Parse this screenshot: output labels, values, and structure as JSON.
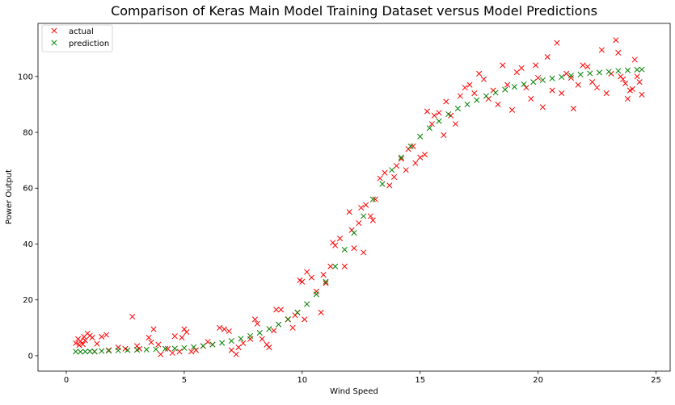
{
  "chart_data": {
    "type": "scatter",
    "title": "Comparison of Keras Main Model Training Dataset versus Model Predictions",
    "xlabel": "Wind Speed",
    "ylabel": "Power Output",
    "xlim": [
      -1.2,
      25.6
    ],
    "ylim": [
      -5.5,
      119
    ],
    "xticks": [
      0,
      5,
      10,
      15,
      20,
      25
    ],
    "yticks": [
      0,
      20,
      40,
      60,
      80,
      100
    ],
    "grid": false,
    "legend_position": "top-left",
    "marker": "x",
    "series": [
      {
        "name": "actual",
        "color": "#ff0000",
        "points": [
          [
            0.4,
            4.5
          ],
          [
            0.5,
            6.0
          ],
          [
            0.55,
            3.8
          ],
          [
            0.6,
            5.2
          ],
          [
            0.7,
            4.1
          ],
          [
            0.75,
            6.8
          ],
          [
            0.8,
            5.5
          ],
          [
            0.9,
            8.0
          ],
          [
            1.0,
            7.2
          ],
          [
            1.1,
            6.5
          ],
          [
            1.2,
            1.5
          ],
          [
            1.3,
            4.3
          ],
          [
            1.5,
            6.8
          ],
          [
            1.7,
            7.5
          ],
          [
            1.8,
            2.0
          ],
          [
            2.2,
            3.0
          ],
          [
            2.5,
            2.5
          ],
          [
            2.8,
            14.0
          ],
          [
            3.0,
            3.5
          ],
          [
            3.1,
            2.5
          ],
          [
            3.5,
            6.5
          ],
          [
            3.6,
            4.8
          ],
          [
            3.7,
            9.5
          ],
          [
            3.9,
            4.0
          ],
          [
            4.0,
            0.5
          ],
          [
            4.3,
            2.5
          ],
          [
            4.5,
            1.0
          ],
          [
            4.6,
            7.0
          ],
          [
            4.8,
            1.5
          ],
          [
            4.9,
            6.5
          ],
          [
            5.0,
            9.5
          ],
          [
            5.1,
            8.5
          ],
          [
            5.3,
            1.5
          ],
          [
            5.5,
            2.0
          ],
          [
            5.8,
            3.5
          ],
          [
            6.0,
            5.0
          ],
          [
            6.2,
            4.0
          ],
          [
            6.5,
            10.0
          ],
          [
            6.7,
            9.5
          ],
          [
            6.9,
            8.8
          ],
          [
            7.0,
            2.0
          ],
          [
            7.2,
            0.5
          ],
          [
            7.3,
            3.0
          ],
          [
            7.5,
            4.5
          ],
          [
            7.8,
            6.0
          ],
          [
            8.0,
            13.0
          ],
          [
            8.1,
            11.5
          ],
          [
            8.3,
            6.0
          ],
          [
            8.5,
            4.0
          ],
          [
            8.6,
            3.0
          ],
          [
            8.8,
            9.0
          ],
          [
            8.9,
            16.5
          ],
          [
            9.1,
            16.5
          ],
          [
            9.4,
            13.0
          ],
          [
            9.6,
            10.0
          ],
          [
            9.7,
            14.5
          ],
          [
            9.8,
            15.5
          ],
          [
            9.9,
            27.0
          ],
          [
            10.0,
            26.5
          ],
          [
            10.1,
            13.0
          ],
          [
            10.2,
            30.0
          ],
          [
            10.4,
            28.0
          ],
          [
            10.6,
            23.0
          ],
          [
            10.8,
            15.5
          ],
          [
            10.9,
            29.0
          ],
          [
            11.0,
            26.0
          ],
          [
            11.2,
            32.0
          ],
          [
            11.3,
            40.5
          ],
          [
            11.4,
            39.5
          ],
          [
            11.6,
            42.0
          ],
          [
            11.8,
            32.0
          ],
          [
            12.0,
            51.5
          ],
          [
            12.1,
            45.0
          ],
          [
            12.2,
            38.5
          ],
          [
            12.4,
            47.5
          ],
          [
            12.5,
            53.0
          ],
          [
            12.6,
            37.0
          ],
          [
            12.7,
            54.0
          ],
          [
            12.9,
            50.0
          ],
          [
            13.0,
            48.5
          ],
          [
            13.1,
            56.0
          ],
          [
            13.3,
            63.5
          ],
          [
            13.5,
            65.5
          ],
          [
            13.7,
            61.0
          ],
          [
            13.9,
            64.0
          ],
          [
            14.0,
            68.0
          ],
          [
            14.2,
            70.5
          ],
          [
            14.4,
            66.5
          ],
          [
            14.5,
            74.0
          ],
          [
            14.7,
            75.0
          ],
          [
            14.8,
            69.0
          ],
          [
            15.0,
            71.0
          ],
          [
            15.2,
            72.0
          ],
          [
            15.3,
            87.5
          ],
          [
            15.5,
            83.0
          ],
          [
            15.6,
            86.0
          ],
          [
            15.8,
            87.0
          ],
          [
            16.0,
            79.0
          ],
          [
            16.1,
            91.0
          ],
          [
            16.3,
            86.0
          ],
          [
            16.5,
            83.0
          ],
          [
            16.7,
            93.0
          ],
          [
            16.9,
            96.0
          ],
          [
            17.1,
            97.0
          ],
          [
            17.3,
            94.0
          ],
          [
            17.5,
            101.0
          ],
          [
            17.7,
            99.0
          ],
          [
            17.9,
            92.0
          ],
          [
            18.1,
            95.0
          ],
          [
            18.3,
            90.0
          ],
          [
            18.5,
            104.0
          ],
          [
            18.7,
            97.0
          ],
          [
            18.9,
            88.0
          ],
          [
            19.1,
            101.5
          ],
          [
            19.3,
            103.0
          ],
          [
            19.5,
            96.0
          ],
          [
            19.7,
            92.0
          ],
          [
            19.9,
            104.0
          ],
          [
            20.0,
            99.5
          ],
          [
            20.2,
            89.0
          ],
          [
            20.4,
            107.0
          ],
          [
            20.6,
            95.0
          ],
          [
            20.8,
            112.0
          ],
          [
            21.0,
            94.0
          ],
          [
            21.2,
            101.0
          ],
          [
            21.4,
            99.5
          ],
          [
            21.5,
            88.5
          ],
          [
            21.7,
            97.0
          ],
          [
            21.9,
            104.0
          ],
          [
            22.1,
            103.5
          ],
          [
            22.3,
            98.0
          ],
          [
            22.5,
            96.0
          ],
          [
            22.7,
            109.5
          ],
          [
            22.9,
            94.0
          ],
          [
            23.1,
            101.0
          ],
          [
            23.3,
            113.0
          ],
          [
            23.4,
            108.5
          ],
          [
            23.5,
            100.0
          ],
          [
            23.6,
            99.0
          ],
          [
            23.7,
            97.5
          ],
          [
            23.8,
            92.0
          ],
          [
            23.9,
            95.0
          ],
          [
            24.0,
            95.5
          ],
          [
            24.1,
            106.0
          ],
          [
            24.2,
            100.0
          ],
          [
            24.3,
            98.0
          ],
          [
            24.4,
            93.5
          ]
        ]
      },
      {
        "name": "prediction",
        "color": "#008000",
        "points": [
          [
            0.4,
            1.5
          ],
          [
            0.6,
            1.4
          ],
          [
            0.8,
            1.5
          ],
          [
            1.0,
            1.6
          ],
          [
            1.2,
            1.5
          ],
          [
            1.5,
            1.7
          ],
          [
            1.8,
            1.8
          ],
          [
            2.2,
            1.9
          ],
          [
            2.6,
            2.0
          ],
          [
            3.0,
            2.1
          ],
          [
            3.4,
            2.2
          ],
          [
            3.8,
            2.3
          ],
          [
            4.2,
            2.5
          ],
          [
            4.6,
            2.6
          ],
          [
            5.0,
            2.8
          ],
          [
            5.4,
            3.1
          ],
          [
            5.8,
            3.5
          ],
          [
            6.2,
            4.0
          ],
          [
            6.6,
            4.6
          ],
          [
            7.0,
            5.3
          ],
          [
            7.4,
            6.1
          ],
          [
            7.8,
            7.1
          ],
          [
            8.2,
            8.2
          ],
          [
            8.6,
            9.6
          ],
          [
            9.0,
            11.2
          ],
          [
            9.4,
            13.1
          ],
          [
            9.8,
            15.5
          ],
          [
            10.2,
            18.5
          ],
          [
            10.6,
            22.0
          ],
          [
            11.0,
            26.5
          ],
          [
            11.4,
            32.0
          ],
          [
            11.8,
            38.0
          ],
          [
            12.2,
            44.0
          ],
          [
            12.6,
            50.0
          ],
          [
            13.0,
            56.0
          ],
          [
            13.4,
            61.5
          ],
          [
            13.8,
            66.5
          ],
          [
            14.2,
            71.0
          ],
          [
            14.6,
            75.0
          ],
          [
            15.0,
            78.5
          ],
          [
            15.4,
            81.5
          ],
          [
            15.8,
            84.0
          ],
          [
            16.2,
            86.5
          ],
          [
            16.6,
            88.5
          ],
          [
            17.0,
            90.0
          ],
          [
            17.4,
            91.5
          ],
          [
            17.8,
            93.0
          ],
          [
            18.2,
            94.2
          ],
          [
            18.6,
            95.3
          ],
          [
            19.0,
            96.3
          ],
          [
            19.4,
            97.2
          ],
          [
            19.8,
            98.0
          ],
          [
            20.2,
            98.7
          ],
          [
            20.6,
            99.3
          ],
          [
            21.0,
            99.8
          ],
          [
            21.4,
            100.3
          ],
          [
            21.8,
            100.7
          ],
          [
            22.2,
            101.1
          ],
          [
            22.6,
            101.4
          ],
          [
            23.0,
            101.7
          ],
          [
            23.4,
            102.0
          ],
          [
            23.8,
            102.2
          ],
          [
            24.2,
            102.4
          ],
          [
            24.4,
            102.5
          ]
        ]
      }
    ]
  }
}
